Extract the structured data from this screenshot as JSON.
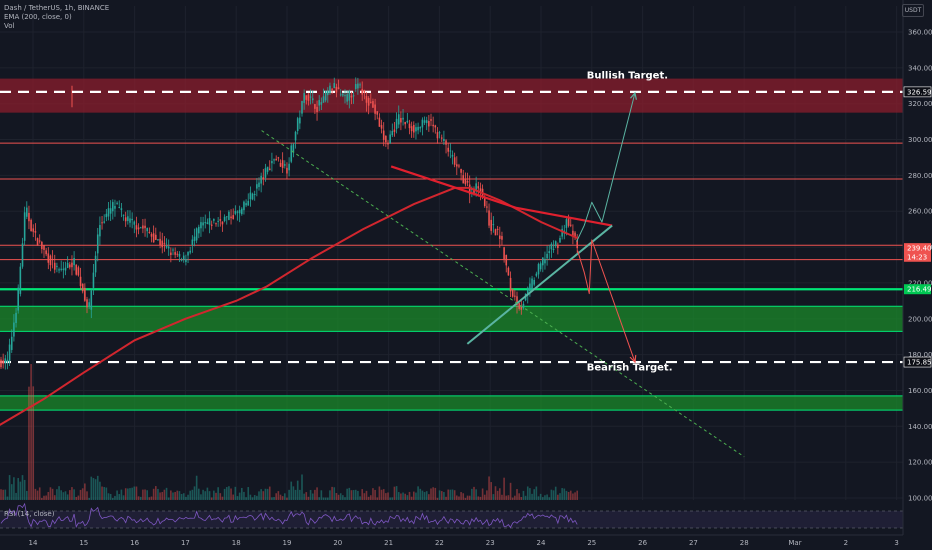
{
  "header": {
    "symbol_line": "Dash / TetherUS, 1h, BINANCE",
    "ema_line": "EMA (200, close, 0)",
    "vol_line": "Vol",
    "quote_currency": "USDT"
  },
  "rsi_label": "RSI (14, close)",
  "colors": {
    "background": "#131722",
    "grid": "#1e222d",
    "up": "#26a69a",
    "down": "#ef5350",
    "ema": "#d1262e",
    "resistance_zone": "#8b1d2c",
    "support_zone": "#1b8a2a",
    "support_line": "#00e676",
    "teal_line": "#5ab4a2",
    "trendline_red": "#e0202e",
    "green_dotted": "#4caf50"
  },
  "chart_data": {
    "type": "candlestick",
    "y_axis": {
      "min": 90,
      "max": 372,
      "ticks": [
        100,
        120,
        140,
        160,
        180,
        200,
        220,
        240,
        260,
        280,
        300,
        320,
        340,
        360
      ]
    },
    "x_axis": {
      "labels": [
        "14",
        "15",
        "16",
        "17",
        "18",
        "19",
        "20",
        "21",
        "22",
        "23",
        "24",
        "25",
        "26",
        "27",
        "28",
        "Mar",
        "2",
        "3"
      ]
    },
    "price_tags": [
      {
        "value": 326.59,
        "label": "326.59",
        "style": "dark"
      },
      {
        "value": 239.4,
        "label": "239.40",
        "style": "red"
      },
      {
        "value": 234.6,
        "label": "14:23",
        "style": "red"
      },
      {
        "value": 216.49,
        "label": "216.49",
        "style": "green"
      },
      {
        "value": 175.85,
        "label": "175.85",
        "style": "dark"
      }
    ],
    "annotations": [
      {
        "text": "Bullish Target.",
        "x": "24.9",
        "y": 334
      },
      {
        "text": "Bearish Target.",
        "x": "24.9",
        "y": 171
      }
    ],
    "levels": {
      "bullish_target": 326.59,
      "bearish_target": 175.85,
      "resistance_zone": [
        315,
        334
      ],
      "red_lines": [
        298,
        278,
        241,
        233
      ],
      "support_line": 216.49,
      "support_zone": [
        193,
        207
      ],
      "lower_support_zone": [
        149,
        157
      ]
    },
    "price_path": [
      {
        "day": 13.5,
        "price": 176
      },
      {
        "day": 13.7,
        "price": 212
      },
      {
        "day": 13.85,
        "price": 262
      },
      {
        "day": 14.0,
        "price": 248
      },
      {
        "day": 14.25,
        "price": 236
      },
      {
        "day": 14.5,
        "price": 226
      },
      {
        "day": 14.8,
        "price": 232
      },
      {
        "day": 15.1,
        "price": 205
      },
      {
        "day": 15.3,
        "price": 252
      },
      {
        "day": 15.6,
        "price": 264
      },
      {
        "day": 15.85,
        "price": 255
      },
      {
        "day": 16.2,
        "price": 250
      },
      {
        "day": 16.6,
        "price": 240
      },
      {
        "day": 16.95,
        "price": 232
      },
      {
        "day": 17.3,
        "price": 252
      },
      {
        "day": 17.7,
        "price": 255
      },
      {
        "day": 18.1,
        "price": 260
      },
      {
        "day": 18.5,
        "price": 278
      },
      {
        "day": 18.75,
        "price": 290
      },
      {
        "day": 19.0,
        "price": 284
      },
      {
        "day": 19.35,
        "price": 326
      },
      {
        "day": 19.6,
        "price": 318
      },
      {
        "day": 19.9,
        "price": 330
      },
      {
        "day": 20.15,
        "price": 322
      },
      {
        "day": 20.4,
        "price": 330
      },
      {
        "day": 20.7,
        "price": 318
      },
      {
        "day": 20.95,
        "price": 297
      },
      {
        "day": 21.2,
        "price": 312
      },
      {
        "day": 21.5,
        "price": 306
      },
      {
        "day": 21.8,
        "price": 310
      },
      {
        "day": 22.1,
        "price": 298
      },
      {
        "day": 22.35,
        "price": 284
      },
      {
        "day": 22.6,
        "price": 272
      },
      {
        "day": 22.8,
        "price": 274
      },
      {
        "day": 23.0,
        "price": 252
      },
      {
        "day": 23.2,
        "price": 246
      },
      {
        "day": 23.4,
        "price": 216
      },
      {
        "day": 23.6,
        "price": 206
      },
      {
        "day": 23.85,
        "price": 222
      },
      {
        "day": 24.1,
        "price": 236
      },
      {
        "day": 24.35,
        "price": 243
      },
      {
        "day": 24.5,
        "price": 255
      },
      {
        "day": 24.62,
        "price": 248
      },
      {
        "day": 24.72,
        "price": 238
      }
    ],
    "ema200": [
      {
        "day": 13.3,
        "price": 140
      },
      {
        "day": 14.2,
        "price": 155
      },
      {
        "day": 15.0,
        "price": 170
      },
      {
        "day": 16.0,
        "price": 188
      },
      {
        "day": 17.0,
        "price": 200
      },
      {
        "day": 18.0,
        "price": 210
      },
      {
        "day": 18.6,
        "price": 218
      },
      {
        "day": 19.5,
        "price": 234
      },
      {
        "day": 20.5,
        "price": 250
      },
      {
        "day": 21.5,
        "price": 264
      },
      {
        "day": 22.3,
        "price": 273
      },
      {
        "day": 22.6,
        "price": 273
      },
      {
        "day": 23.2,
        "price": 266
      },
      {
        "day": 24.0,
        "price": 254
      },
      {
        "day": 24.72,
        "price": 245
      }
    ],
    "drawings": [
      {
        "kind": "line",
        "color": "trendline_red",
        "width": 2.2,
        "points": [
          [
            21.05,
            285
          ],
          [
            23.5,
            262
          ],
          [
            25.4,
            252
          ]
        ]
      },
      {
        "kind": "line",
        "color": "teal_line",
        "width": 2,
        "points": [
          [
            22.55,
            186
          ],
          [
            25.4,
            252
          ]
        ]
      },
      {
        "kind": "dashed",
        "color": "green_dotted",
        "width": 1,
        "points": [
          [
            18.5,
            305
          ],
          [
            28.0,
            123
          ]
        ]
      },
      {
        "kind": "arrow",
        "color": "teal_line",
        "width": 1,
        "points": [
          [
            24.7,
            243
          ],
          [
            24.85,
            252
          ],
          [
            25.0,
            265
          ],
          [
            25.2,
            254
          ],
          [
            25.85,
            326
          ]
        ]
      },
      {
        "kind": "arrow",
        "color": "down",
        "width": 1,
        "points": [
          [
            24.72,
            238
          ],
          [
            24.85,
            226
          ],
          [
            24.95,
            214
          ],
          [
            25.0,
            244
          ],
          [
            25.85,
            175.85
          ]
        ]
      }
    ]
  }
}
